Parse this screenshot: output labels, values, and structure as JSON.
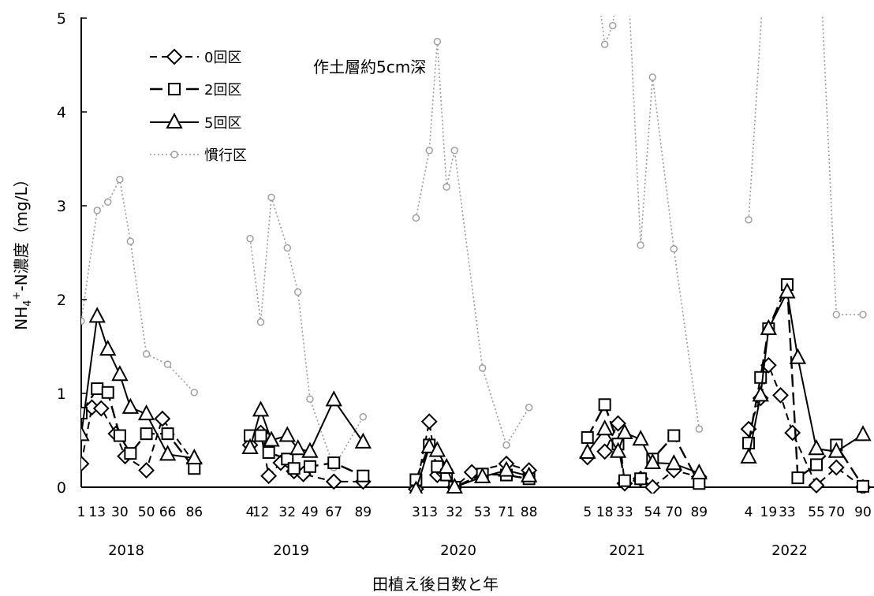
{
  "chart_data": {
    "type": "line",
    "title": "",
    "annotation": "作土層約5cm深",
    "xlabel": "田植え後日数と年",
    "ylabel": "NH4+-N濃度（mg/L）",
    "ylabel_parts": {
      "pre": "NH",
      "sub": "4",
      "sup": "+",
      "post": "-N濃度（mg/L）"
    },
    "ylim": [
      0,
      5
    ],
    "yticks": [
      "0",
      "1",
      "2",
      "3",
      "4",
      "5"
    ],
    "grid": false,
    "legend_position": "top-left",
    "years": [
      {
        "label": "2018",
        "ticks": [
          "1",
          "13",
          "30",
          "50",
          "66",
          "86"
        ],
        "series": {
          "0回区": [
            [
              1,
              0.25
            ],
            [
              9,
              0.85
            ],
            [
              16,
              0.84
            ],
            [
              27,
              0.57
            ],
            [
              34,
              0.33
            ],
            [
              50,
              0.18
            ],
            [
              62,
              0.73
            ],
            [
              86,
              0.26
            ]
          ],
          "2回区": [
            [
              1,
              0.79
            ],
            [
              13,
              1.05
            ],
            [
              21,
              1.01
            ],
            [
              30,
              0.55
            ],
            [
              38,
              0.36
            ],
            [
              50,
              0.57
            ],
            [
              66,
              0.57
            ],
            [
              86,
              0.2
            ]
          ],
          "5回区": [
            [
              1,
              0.56
            ],
            [
              13,
              1.82
            ],
            [
              21,
              1.47
            ],
            [
              30,
              1.2
            ],
            [
              38,
              0.85
            ],
            [
              50,
              0.78
            ],
            [
              66,
              0.35
            ],
            [
              86,
              0.31
            ]
          ],
          "慣行区": [
            [
              1,
              1.77
            ],
            [
              13,
              2.95
            ],
            [
              21,
              3.04
            ],
            [
              30,
              3.28
            ],
            [
              38,
              2.62
            ],
            [
              50,
              1.42
            ],
            [
              66,
              1.31
            ],
            [
              86,
              1.01
            ]
          ]
        }
      },
      {
        "label": "2019",
        "ticks": [
          "4",
          "12",
          "32",
          "49",
          "67",
          "89"
        ],
        "series": {
          "0回区": [
            [
              4,
              0.45
            ],
            [
              12,
              0.58
            ],
            [
              18,
              0.12
            ],
            [
              27,
              0.26
            ],
            [
              37,
              0.17
            ],
            [
              44,
              0.14
            ],
            [
              67,
              0.06
            ],
            [
              89,
              0.06
            ]
          ],
          "2回区": [
            [
              4,
              0.55
            ],
            [
              12,
              0.55
            ],
            [
              18,
              0.37
            ],
            [
              32,
              0.3
            ],
            [
              37,
              0.2
            ],
            [
              49,
              0.22
            ],
            [
              67,
              0.26
            ],
            [
              89,
              0.12
            ]
          ],
          "5回区": [
            [
              4,
              0.42
            ],
            [
              12,
              0.82
            ],
            [
              20,
              0.5
            ],
            [
              32,
              0.55
            ],
            [
              40,
              0.41
            ],
            [
              49,
              0.38
            ],
            [
              67,
              0.93
            ],
            [
              89,
              0.48
            ]
          ],
          "慣行区": [
            [
              4,
              2.65
            ],
            [
              12,
              1.76
            ],
            [
              20,
              3.09
            ],
            [
              32,
              2.55
            ],
            [
              40,
              2.08
            ],
            [
              49,
              0.94
            ],
            [
              67,
              0.21
            ],
            [
              89,
              0.75
            ]
          ]
        }
      },
      {
        "label": "2020",
        "ticks": [
          "3",
          "13",
          "32",
          "53",
          "71",
          "88"
        ],
        "series": {
          "0回区": [
            [
              3,
              -0.02
            ],
            [
              13,
              0.7
            ],
            [
              19,
              0.13
            ],
            [
              24,
              0.15
            ],
            [
              32,
              0.0
            ],
            [
              45,
              0.16
            ],
            [
              71,
              0.25
            ],
            [
              88,
              0.18
            ]
          ],
          "2回区": [
            [
              3,
              0.08
            ],
            [
              13,
              0.45
            ],
            [
              19,
              0.22
            ],
            [
              26,
              0.13
            ],
            [
              32,
              0.0
            ],
            [
              53,
              0.14
            ],
            [
              71,
              0.13
            ],
            [
              88,
              0.09
            ]
          ],
          "5回区": [
            [
              3,
              -0.03
            ],
            [
              13,
              0.43
            ],
            [
              19,
              0.39
            ],
            [
              26,
              0.21
            ],
            [
              32,
              0.0
            ],
            [
              53,
              0.11
            ],
            [
              71,
              0.18
            ],
            [
              88,
              0.12
            ]
          ],
          "慣行区": [
            [
              3,
              2.87
            ],
            [
              13,
              3.59
            ],
            [
              19,
              4.75
            ],
            [
              26,
              3.2
            ],
            [
              32,
              3.59
            ],
            [
              53,
              1.27
            ],
            [
              71,
              0.45
            ],
            [
              88,
              0.85
            ]
          ]
        }
      },
      {
        "label": "2021",
        "ticks": [
          "5",
          "18",
          "33",
          "54",
          "70",
          "89"
        ],
        "series": {
          "0回区": [
            [
              5,
              0.32
            ],
            [
              18,
              0.38
            ],
            [
              28,
              0.68
            ],
            [
              33,
              0.04
            ],
            [
              45,
              0.09
            ],
            [
              54,
              0.0
            ],
            [
              70,
              0.18
            ],
            [
              89,
              0.11
            ]
          ],
          "2回区": [
            [
              5,
              0.53
            ],
            [
              18,
              0.88
            ],
            [
              28,
              0.46
            ],
            [
              33,
              0.07
            ],
            [
              45,
              0.09
            ],
            [
              54,
              0.3
            ],
            [
              70,
              0.55
            ],
            [
              89,
              0.04
            ]
          ],
          "5回区": [
            [
              5,
              0.37
            ],
            [
              18,
              0.62
            ],
            [
              28,
              0.38
            ],
            [
              33,
              0.58
            ],
            [
              45,
              0.51
            ],
            [
              54,
              0.26
            ],
            [
              70,
              0.25
            ],
            [
              89,
              0.15
            ]
          ],
          "慣行区": [
            [
              5,
              6.2
            ],
            [
              18,
              4.72
            ],
            [
              24,
              4.92
            ],
            [
              33,
              6.2
            ],
            [
              45,
              2.58
            ],
            [
              54,
              4.37
            ],
            [
              70,
              2.54
            ],
            [
              89,
              0.62
            ]
          ]
        }
      },
      {
        "label": "2022",
        "ticks": [
          "4",
          "19",
          "33",
          "55",
          "70",
          "90"
        ],
        "series": {
          "0回区": [
            [
              4,
              0.62
            ],
            [
              13,
              0.95
            ],
            [
              19,
              1.3
            ],
            [
              28,
              0.98
            ],
            [
              37,
              0.58
            ],
            [
              55,
              0.02
            ],
            [
              70,
              0.21
            ],
            [
              90,
              0.0
            ]
          ],
          "2回区": [
            [
              4,
              0.47
            ],
            [
              13,
              1.17
            ],
            [
              19,
              1.69
            ],
            [
              33,
              2.16
            ],
            [
              41,
              0.1
            ],
            [
              55,
              0.24
            ],
            [
              70,
              0.45
            ],
            [
              90,
              0.01
            ]
          ],
          "5回区": [
            [
              4,
              0.32
            ],
            [
              13,
              0.98
            ],
            [
              19,
              1.69
            ],
            [
              33,
              2.08
            ],
            [
              41,
              1.38
            ],
            [
              55,
              0.41
            ],
            [
              70,
              0.38
            ],
            [
              90,
              0.56
            ]
          ],
          "慣行区": [
            [
              4,
              2.85
            ],
            [
              19,
              6.2
            ],
            [
              33,
              6.8
            ],
            [
              55,
              6.4
            ],
            [
              70,
              1.84
            ],
            [
              90,
              1.84
            ]
          ]
        }
      }
    ],
    "series_meta": [
      {
        "name": "0回区",
        "marker": "diamond",
        "dash": "9,6",
        "width": 2,
        "color": "#000000"
      },
      {
        "name": "2回区",
        "marker": "square",
        "dash": "16,7",
        "width": 2.4,
        "color": "#000000"
      },
      {
        "name": "5回区",
        "marker": "triangle",
        "dash": "",
        "width": 2,
        "color": "#000000"
      },
      {
        "name": "慣行区",
        "marker": "circle",
        "dash": "2,3",
        "width": 1.6,
        "color": "#9a9a9a"
      }
    ]
  }
}
